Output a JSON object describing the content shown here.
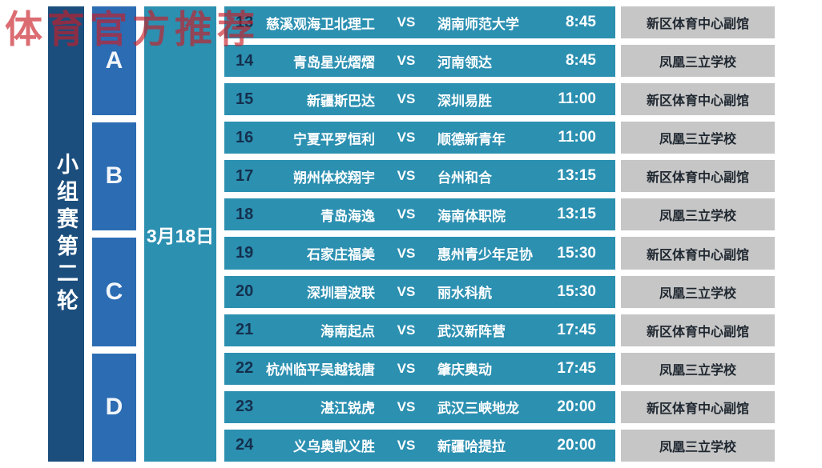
{
  "watermark": "体育官方推荐",
  "sidebar": {
    "round_title": "小组赛第二轮"
  },
  "groups": [
    {
      "label": "A"
    },
    {
      "label": "B"
    },
    {
      "label": "C"
    },
    {
      "label": "D"
    }
  ],
  "date_label": "3月18日",
  "vs_label": "VS",
  "matches": [
    {
      "no": "13",
      "home": "慈溪观海卫北理工",
      "away": "湖南师范大学",
      "time": "8:45",
      "venue": "新区体育中心副馆"
    },
    {
      "no": "14",
      "home": "青岛星光熠熠",
      "away": "河南领达",
      "time": "8:45",
      "venue": "凤凰三立学校"
    },
    {
      "no": "15",
      "home": "新疆斯巴达",
      "away": "深圳易胜",
      "time": "11:00",
      "venue": "新区体育中心副馆"
    },
    {
      "no": "16",
      "home": "宁夏平罗恒利",
      "away": "顺德新青年",
      "time": "11:00",
      "venue": "凤凰三立学校"
    },
    {
      "no": "17",
      "home": "朔州体校翔宇",
      "away": "台州和合",
      "time": "13:15",
      "venue": "新区体育中心副馆"
    },
    {
      "no": "18",
      "home": "青岛海逸",
      "away": "海南体职院",
      "time": "13:15",
      "venue": "凤凰三立学校"
    },
    {
      "no": "19",
      "home": "石家庄福美",
      "away": "惠州青少年足协",
      "time": "15:30",
      "venue": "新区体育中心副馆"
    },
    {
      "no": "20",
      "home": "深圳碧波联",
      "away": "丽水科航",
      "time": "15:30",
      "venue": "凤凰三立学校"
    },
    {
      "no": "21",
      "home": "海南起点",
      "away": "武汉新阵营",
      "time": "17:45",
      "venue": "新区体育中心副馆"
    },
    {
      "no": "22",
      "home": "杭州临平吴越钱唐",
      "away": "肇庆奥动",
      "time": "17:45",
      "venue": "凤凰三立学校"
    },
    {
      "no": "23",
      "home": "湛江锐虎",
      "away": "武汉三峡地龙",
      "time": "20:00",
      "venue": "新区体育中心副馆"
    },
    {
      "no": "24",
      "home": "义乌奥凯义胜",
      "away": "新疆哈提拉",
      "time": "20:00",
      "venue": "凤凰三立学校"
    }
  ],
  "colors": {
    "sidebar_navy": "#1b4e7d",
    "group_blue": "#2b6cb3",
    "row_teal": "#2c90b1",
    "venue_gray": "#c6c6c6",
    "number_navy": "#14304d",
    "watermark_red": "#c81e28",
    "text_white": "#ffffff"
  }
}
